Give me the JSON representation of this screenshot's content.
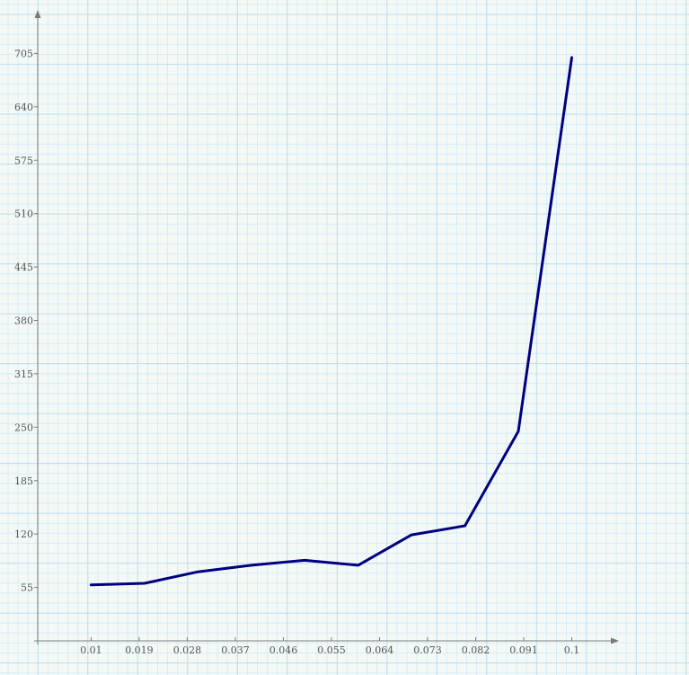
{
  "chart_data": {
    "type": "line",
    "title": "",
    "xlabel": "",
    "ylabel": "",
    "x_ticks": [
      "0.01",
      "0.019",
      "0.028",
      "0.037",
      "0.046",
      "0.055",
      "0.064",
      "0.073",
      "0.082",
      "0.091",
      "0.1"
    ],
    "y_ticks": [
      "55",
      "120",
      "185",
      "250",
      "315",
      "380",
      "445",
      "510",
      "575",
      "640",
      "705"
    ],
    "xlim": [
      0.0,
      0.1085
    ],
    "ylim": [
      -10,
      770
    ],
    "grid": true,
    "series": [
      {
        "color": "#000080",
        "x": [
          0.01,
          0.02,
          0.03,
          0.04,
          0.05,
          0.06,
          0.07,
          0.08,
          0.09,
          0.1
        ],
        "y": [
          58,
          60,
          74,
          82,
          88,
          82,
          119,
          130,
          245,
          700
        ]
      }
    ]
  }
}
